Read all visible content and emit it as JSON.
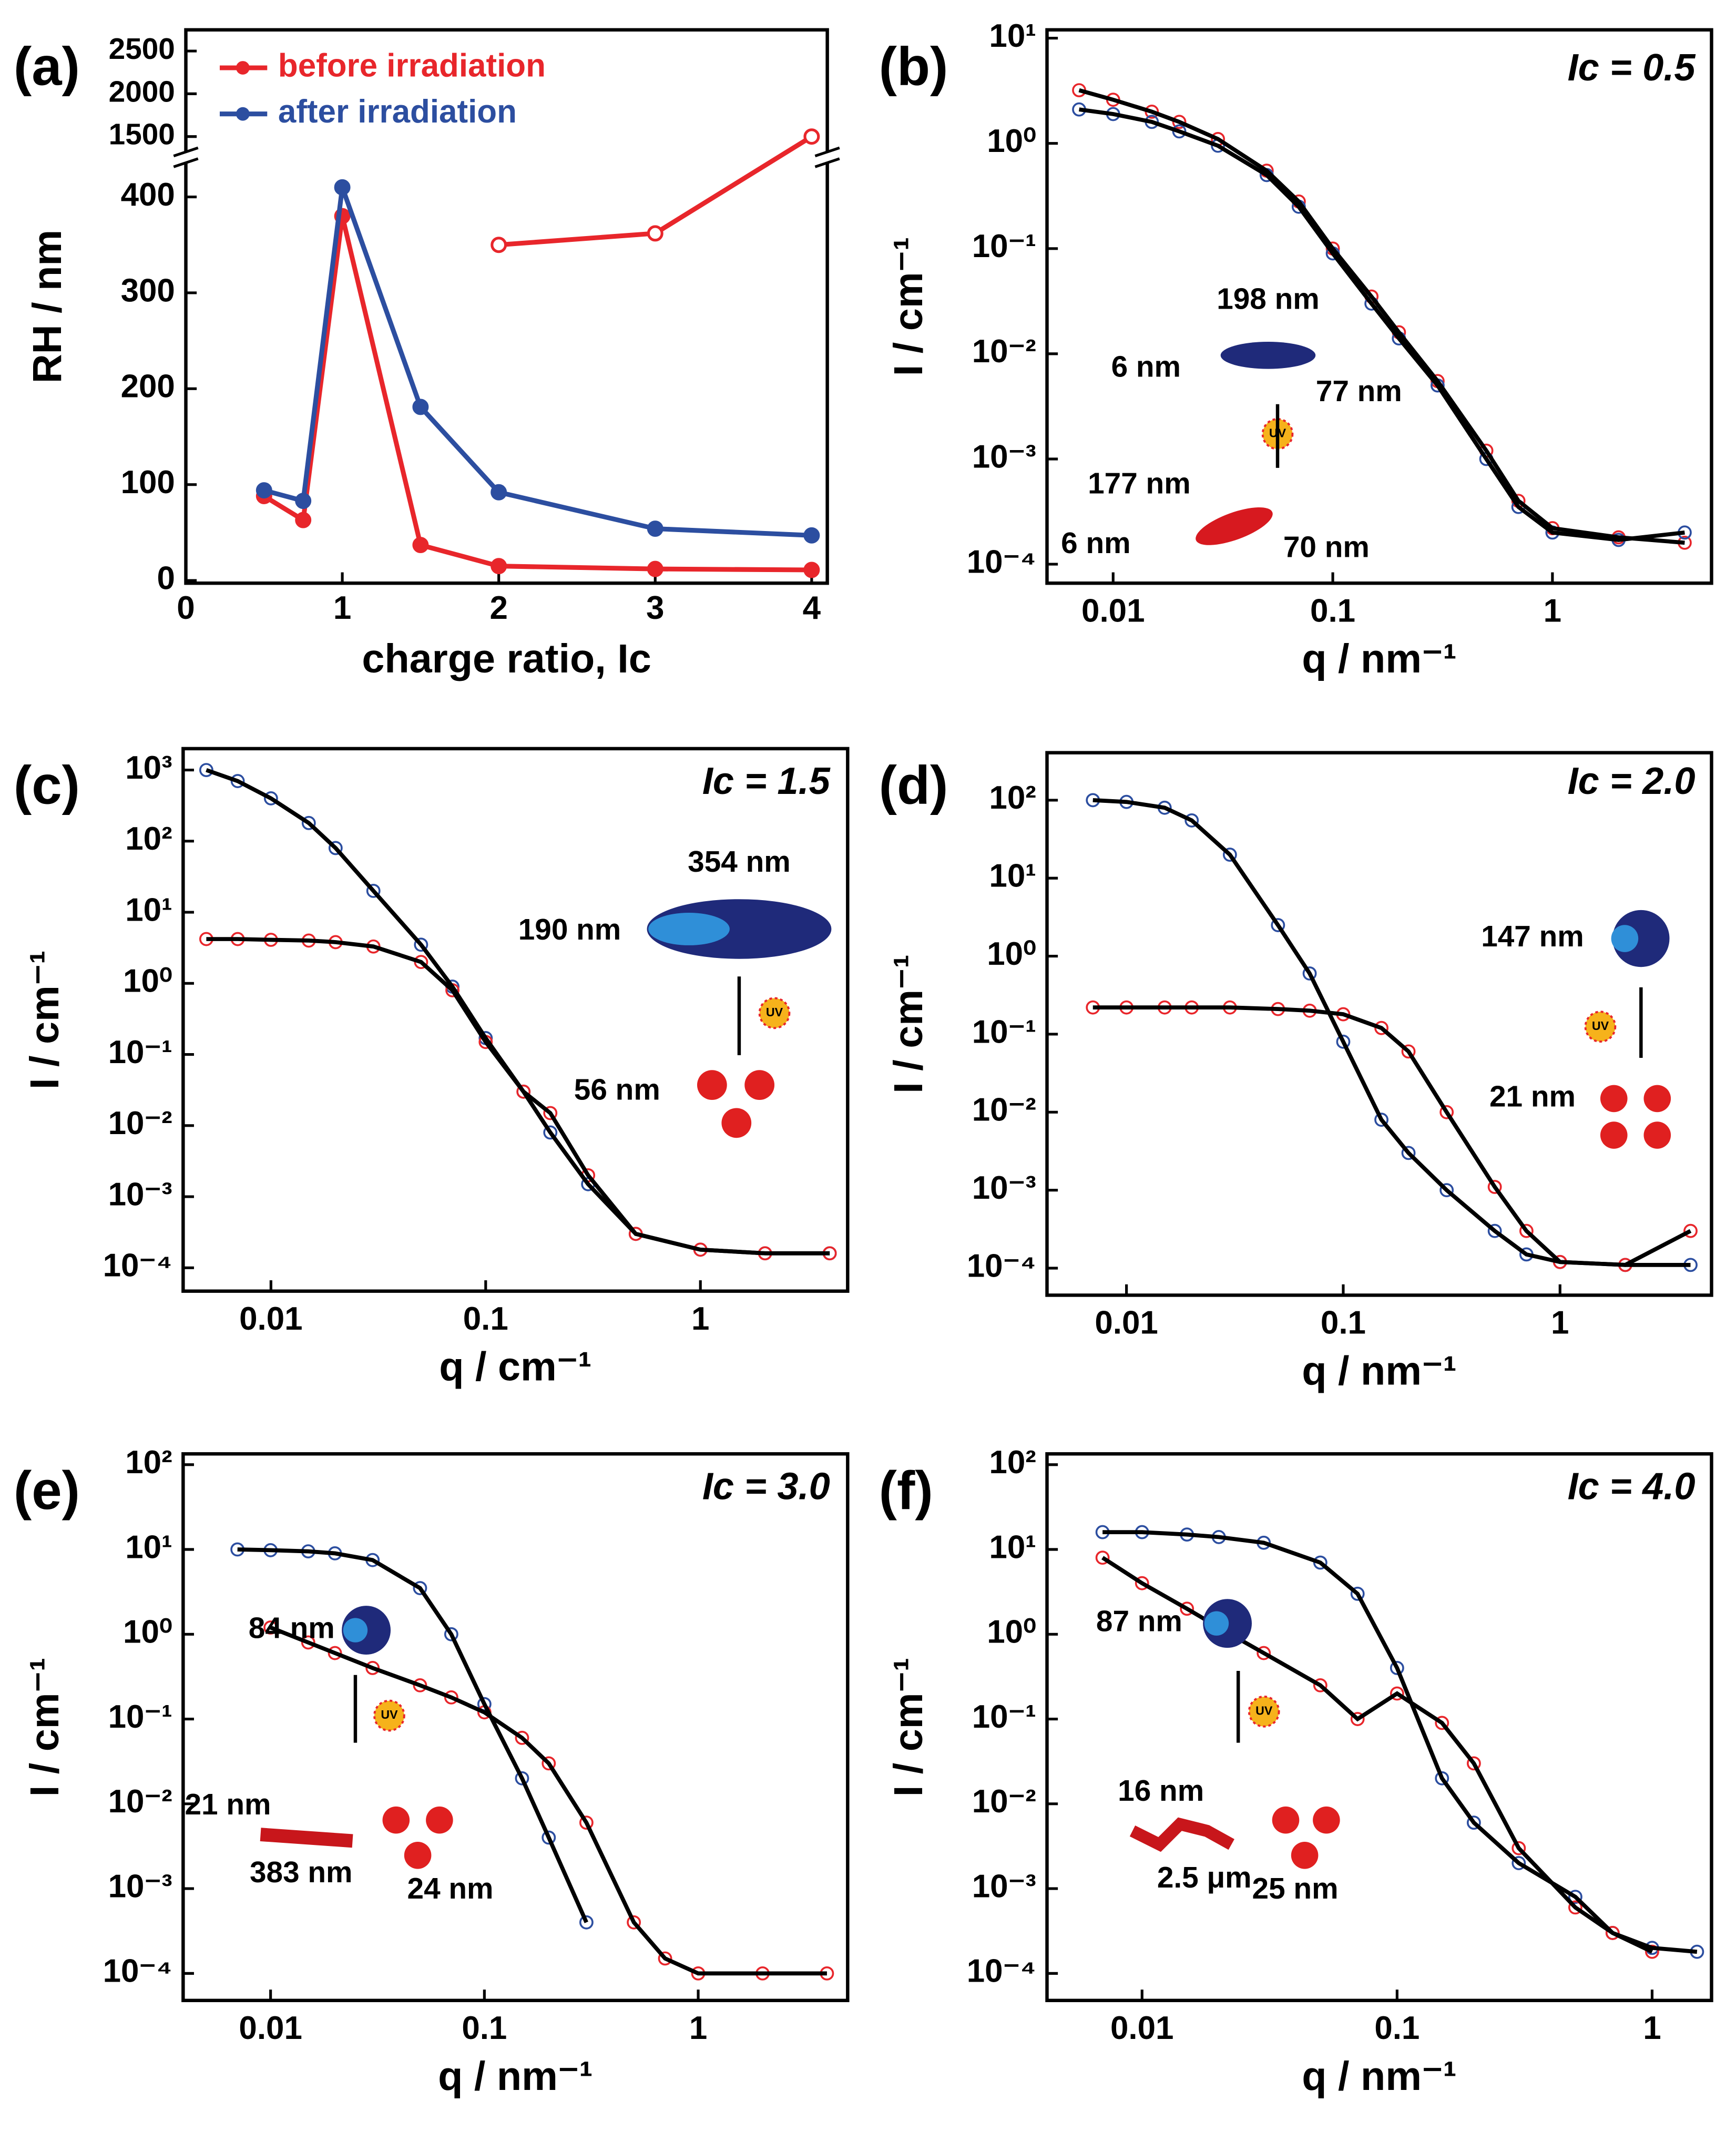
{
  "chart_data": [
    {
      "type": "line",
      "panel_label": "(a)",
      "xlabel": "charge ratio,  Ic",
      "ylabel": "RH / nm",
      "xlim": [
        0,
        4.1
      ],
      "xticks": [
        0,
        1,
        2,
        3,
        4
      ],
      "ylim": [
        0,
        430
      ],
      "yticks": [
        0,
        100,
        200,
        300,
        400
      ],
      "y_upper_lim": [
        1400,
        2700
      ],
      "y_upper_ticks": [
        1500,
        2000,
        2500
      ],
      "axis_break": true,
      "legend": "upper-left",
      "series": [
        {
          "name": "before irradiation",
          "color": "#e8262b",
          "x": [
            0.5,
            0.75,
            1,
            1.5,
            2,
            3,
            4
          ],
          "values": [
            88,
            63,
            380,
            37,
            15,
            12,
            11
          ]
        },
        {
          "color": "#e8262b",
          "marker": "open",
          "x": [
            2,
            3,
            4
          ],
          "values": [
            350,
            362,
            1500
          ]
        },
        {
          "name": "after irradiation",
          "color": "#2c4ea0",
          "x": [
            0.5,
            0.75,
            1,
            1.5,
            2,
            3,
            4
          ],
          "values": [
            94,
            83,
            410,
            181,
            92,
            54,
            47
          ]
        }
      ]
    },
    {
      "type": "loglog",
      "panel_label": "(b)",
      "xlabel": "q / nm⁻¹",
      "ylabel": "I / cm⁻¹",
      "fit_color": "#000000",
      "xlim": [
        0.005,
        5.3
      ],
      "xticks": [
        0.01,
        0.1,
        1
      ],
      "ylim": [
        6.6e-05,
        12
      ],
      "yticks": [
        {
          "value": 0.0001,
          "label": "10⁻⁴"
        },
        {
          "value": 0.001,
          "label": "10⁻³"
        },
        {
          "value": 0.01,
          "label": "10⁻²"
        },
        {
          "value": 0.1,
          "label": "10⁻¹"
        },
        {
          "value": 1,
          "label": "10⁰"
        },
        {
          "value": 10,
          "label": "10¹"
        }
      ],
      "annotations": [
        "Ic = 0.5",
        "198 nm",
        "6 nm",
        "77 nm",
        "177 nm",
        "6 nm",
        "70 nm",
        "UV"
      ],
      "series": [
        {
          "color": "#e8262b",
          "marker": "open",
          "x": [
            0.007,
            0.01,
            0.015,
            0.02,
            0.03,
            0.05,
            0.07,
            0.1,
            0.15,
            0.2,
            0.3,
            0.5,
            0.7,
            1,
            2,
            4
          ],
          "values": [
            3.2,
            2.6,
            2.0,
            1.6,
            1.1,
            0.55,
            0.28,
            0.1,
            0.035,
            0.016,
            0.0055,
            0.0012,
            0.0004,
            0.00022,
            0.00018,
            0.00016
          ]
        },
        {
          "color": "#2c4ea0",
          "marker": "open",
          "x": [
            0.007,
            0.01,
            0.015,
            0.02,
            0.03,
            0.05,
            0.07,
            0.1,
            0.15,
            0.2,
            0.3,
            0.5,
            0.7,
            1,
            2,
            4
          ],
          "values": [
            2.1,
            1.9,
            1.6,
            1.3,
            0.95,
            0.5,
            0.25,
            0.09,
            0.03,
            0.014,
            0.005,
            0.001,
            0.00035,
            0.0002,
            0.00017,
            0.0002
          ]
        }
      ]
    },
    {
      "type": "loglog",
      "panel_label": "(c)",
      "xlabel": "q / cm⁻¹",
      "ylabel": "I / cm⁻¹",
      "fit_color": "#000000",
      "xlim": [
        0.0039,
        4.85
      ],
      "xticks": [
        0.01,
        0.1,
        1
      ],
      "ylim": [
        4.7e-05,
        2000
      ],
      "yticks": [
        {
          "value": 0.0001,
          "label": "10⁻⁴"
        },
        {
          "value": 0.001,
          "label": "10⁻³"
        },
        {
          "value": 0.01,
          "label": "10⁻²"
        },
        {
          "value": 0.1,
          "label": "10⁻¹"
        },
        {
          "value": 1,
          "label": "10⁰"
        },
        {
          "value": 10,
          "label": "10¹"
        },
        {
          "value": 100,
          "label": "10²"
        },
        {
          "value": 1000,
          "label": "10³"
        }
      ],
      "annotations": [
        "Ic = 1.5",
        "354 nm",
        "190 nm",
        "56 nm",
        "UV"
      ],
      "series": [
        {
          "color": "#2c4ea0",
          "marker": "open",
          "x": [
            0.005,
            0.007,
            0.01,
            0.015,
            0.02,
            0.03,
            0.05,
            0.07,
            0.1,
            0.15,
            0.2,
            0.3,
            0.5,
            1,
            2,
            4
          ],
          "values": [
            1000,
            700,
            400,
            180,
            80,
            20,
            3.5,
            0.9,
            0.17,
            0.03,
            0.008,
            0.0015,
            0.0003,
            0.00018,
            0.00016,
            0.00016
          ]
        },
        {
          "color": "#e8262b",
          "marker": "open",
          "x": [
            0.005,
            0.007,
            0.01,
            0.015,
            0.02,
            0.03,
            0.05,
            0.07,
            0.1,
            0.15,
            0.2,
            0.3,
            0.5,
            1,
            2,
            4
          ],
          "values": [
            4.2,
            4.2,
            4.1,
            4.0,
            3.8,
            3.3,
            2.0,
            0.8,
            0.15,
            0.03,
            0.015,
            0.002,
            0.0003,
            0.00018,
            0.00016,
            0.00016
          ]
        }
      ]
    },
    {
      "type": "loglog",
      "panel_label": "(d)",
      "xlabel": "q / nm⁻¹",
      "ylabel": "I / cm⁻¹",
      "fit_color": "#000000",
      "xlim": [
        0.0043,
        5
      ],
      "xticks": [
        0.01,
        0.1,
        1
      ],
      "ylim": [
        4.5e-05,
        406
      ],
      "yticks": [
        {
          "value": 0.0001,
          "label": "10⁻⁴"
        },
        {
          "value": 0.001,
          "label": "10⁻³"
        },
        {
          "value": 0.01,
          "label": "10⁻²"
        },
        {
          "value": 0.1,
          "label": "10⁻¹"
        },
        {
          "value": 1,
          "label": "10⁰"
        },
        {
          "value": 10,
          "label": "10¹"
        },
        {
          "value": 100,
          "label": "10²"
        }
      ],
      "annotations": [
        "Ic = 2.0",
        "147 nm",
        "UV",
        "21 nm"
      ],
      "series": [
        {
          "color": "#2c4ea0",
          "marker": "open",
          "x": [
            0.007,
            0.01,
            0.015,
            0.02,
            0.03,
            0.05,
            0.07,
            0.1,
            0.15,
            0.2,
            0.3,
            0.5,
            0.7,
            1,
            2,
            4
          ],
          "values": [
            100,
            95,
            80,
            55,
            20,
            2.5,
            0.6,
            0.08,
            0.008,
            0.003,
            0.001,
            0.0003,
            0.00015,
            0.00012,
            0.00011,
            0.00011
          ]
        },
        {
          "color": "#e8262b",
          "marker": "open",
          "x": [
            0.007,
            0.01,
            0.015,
            0.02,
            0.03,
            0.05,
            0.07,
            0.1,
            0.15,
            0.2,
            0.3,
            0.5,
            0.7,
            1,
            2,
            4
          ],
          "values": [
            0.22,
            0.22,
            0.22,
            0.22,
            0.22,
            0.21,
            0.2,
            0.18,
            0.12,
            0.06,
            0.01,
            0.0011,
            0.0003,
            0.00012,
            0.00011,
            0.0003
          ]
        }
      ]
    },
    {
      "type": "loglog",
      "panel_label": "(e)",
      "xlabel": "q / nm⁻¹",
      "ylabel": "I / cm⁻¹",
      "fit_color": "#000000",
      "xlim": [
        0.0039,
        5
      ],
      "xticks": [
        0.01,
        0.1,
        1
      ],
      "ylim": [
        4.8e-05,
        134
      ],
      "yticks": [
        {
          "value": 0.0001,
          "label": "10⁻⁴"
        },
        {
          "value": 0.001,
          "label": "10⁻³"
        },
        {
          "value": 0.01,
          "label": "10⁻²"
        },
        {
          "value": 0.1,
          "label": "10⁻¹"
        },
        {
          "value": 1,
          "label": "10⁰"
        },
        {
          "value": 10,
          "label": "10¹"
        },
        {
          "value": 100,
          "label": "10²"
        }
      ],
      "annotations": [
        "Ic = 3.0",
        "84 nm",
        "UV",
        "21 nm",
        "383 nm",
        "24 nm"
      ],
      "series": [
        {
          "color": "#2c4ea0",
          "marker": "open",
          "x": [
            0.007,
            0.01,
            0.015,
            0.02,
            0.03,
            0.05,
            0.07,
            0.1,
            0.15,
            0.2,
            0.3
          ],
          "values": [
            10,
            9.8,
            9.5,
            9,
            7.5,
            3.5,
            1,
            0.15,
            0.02,
            0.004,
            0.0004
          ]
        },
        {
          "color": "#e8262b",
          "marker": "open",
          "x": [
            0.01,
            0.015,
            0.02,
            0.03,
            0.05,
            0.07,
            0.1,
            0.15,
            0.2,
            0.3,
            0.5,
            0.7,
            1,
            2,
            4
          ],
          "values": [
            1.2,
            0.8,
            0.6,
            0.4,
            0.25,
            0.18,
            0.12,
            0.06,
            0.03,
            0.006,
            0.0004,
            0.00015,
            0.0001,
            0.0001,
            0.0001
          ]
        }
      ]
    },
    {
      "type": "loglog",
      "panel_label": "(f)",
      "xlabel": "q / nm⁻¹",
      "ylabel": "I / cm⁻¹",
      "fit_color": "#000000",
      "xlim": [
        0.00424,
        1.71
      ],
      "xticks": [
        0.01,
        0.1,
        1
      ],
      "ylim": [
        4.8e-05,
        134
      ],
      "yticks": [
        {
          "value": 0.0001,
          "label": "10⁻⁴"
        },
        {
          "value": 0.001,
          "label": "10⁻³"
        },
        {
          "value": 0.01,
          "label": "10⁻²"
        },
        {
          "value": 0.1,
          "label": "10⁻¹"
        },
        {
          "value": 1,
          "label": "10⁰"
        },
        {
          "value": 10,
          "label": "10¹"
        },
        {
          "value": 100,
          "label": "10²"
        }
      ],
      "annotations": [
        "Ic = 4.0",
        "87 nm",
        "UV",
        "16 nm",
        "2.5 μm",
        "25 nm"
      ],
      "series": [
        {
          "color": "#2c4ea0",
          "marker": "open",
          "x": [
            0.007,
            0.01,
            0.015,
            0.02,
            0.03,
            0.05,
            0.07,
            0.1,
            0.15,
            0.2,
            0.3,
            0.5,
            0.7,
            1,
            1.5
          ],
          "values": [
            16,
            16,
            15,
            14,
            12,
            7,
            3,
            0.4,
            0.02,
            0.006,
            0.002,
            0.0008,
            0.0003,
            0.0002,
            0.00018
          ]
        },
        {
          "color": "#e8262b",
          "marker": "open",
          "x": [
            0.007,
            0.01,
            0.015,
            0.02,
            0.03,
            0.05,
            0.07,
            0.1,
            0.15,
            0.2,
            0.3,
            0.5,
            0.7,
            1
          ],
          "values": [
            8,
            4,
            2,
            1.2,
            0.6,
            0.25,
            0.1,
            0.2,
            0.09,
            0.03,
            0.003,
            0.0006,
            0.0003,
            0.00018
          ]
        }
      ]
    }
  ]
}
